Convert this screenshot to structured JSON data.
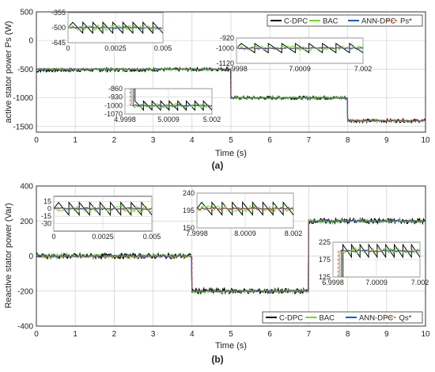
{
  "colors": {
    "c_dpc": "#000000",
    "bac": "#66dd22",
    "ann_dpc": "#2255cc",
    "reference": "#cc5522",
    "grid": "#d0d0d0",
    "axis": "#333333"
  },
  "chart_data": [
    {
      "type": "line",
      "caption": "(a)",
      "xlabel": "Time (s)",
      "ylabel": "active stator power Ps (W)",
      "xlim": [
        0,
        10
      ],
      "ylim": [
        -1600,
        500
      ],
      "xticks": [
        0,
        1,
        2,
        3,
        4,
        5,
        6,
        7,
        8,
        9,
        10
      ],
      "yticks": [
        500,
        0,
        -500,
        -1000,
        -1500
      ],
      "grid": true,
      "legend_position": "top-right",
      "legend": [
        "C-DPC",
        "BAC",
        "ANN-DPC",
        "Ps*"
      ],
      "series": [
        {
          "name": "C-DPC",
          "x": [
            0,
            0.05,
            5,
            5,
            8,
            8,
            10
          ],
          "y": [
            -560,
            -520,
            -500,
            -1000,
            -1000,
            -1400,
            -1400
          ],
          "ripple": 30
        },
        {
          "name": "BAC",
          "x": [
            0,
            5,
            5,
            8,
            8,
            10
          ],
          "y": [
            -500,
            -500,
            -1000,
            -1000,
            -1400,
            -1400
          ],
          "ripple": 20
        },
        {
          "name": "ANN-DPC",
          "x": [
            0,
            5,
            5,
            8,
            8,
            10
          ],
          "y": [
            -500,
            -500,
            -1000,
            -1000,
            -1400,
            -1400
          ],
          "ripple": 8
        },
        {
          "name": "Ps*",
          "x": [
            0,
            5,
            5,
            8,
            8,
            10
          ],
          "y": [
            -500,
            -500,
            -1000,
            -1000,
            -1400,
            -1400
          ],
          "dashed": true
        }
      ],
      "insets": [
        {
          "xlim": [
            0,
            0.005
          ],
          "ylim": [
            -645,
            -355
          ],
          "xticks": [
            "0",
            "0.0025",
            "0.005"
          ],
          "yticks": [
            "-355",
            "-500",
            "-645"
          ],
          "reference": -500,
          "step": null
        },
        {
          "xlim": [
            6.9998,
            7.002
          ],
          "ylim": [
            -1120,
            -920
          ],
          "xticks": [
            "6.9998",
            "7.0009",
            "7.002"
          ],
          "yticks": [
            "-920",
            "-1000",
            "-1120"
          ],
          "reference": -1000,
          "step": null
        },
        {
          "xlim": [
            4.9998,
            5.002
          ],
          "ylim": [
            -1070,
            -860
          ],
          "xticks": [
            "4.9998",
            "5.0009",
            "5.002"
          ],
          "yticks": [
            "-860",
            "-930",
            "-1000",
            "-1070"
          ],
          "reference": -1000,
          "step": {
            "from": -500,
            "to": -1000
          }
        }
      ]
    },
    {
      "type": "line",
      "caption": "(b)",
      "xlabel": "Time (s)",
      "ylabel": "Reactive stator power (Var)",
      "xlim": [
        0,
        10
      ],
      "ylim": [
        -400,
        400
      ],
      "xticks": [
        0,
        1,
        2,
        3,
        4,
        5,
        6,
        7,
        8,
        9,
        10
      ],
      "yticks": [
        400,
        200,
        0,
        -200,
        -400
      ],
      "grid": true,
      "legend_position": "bottom-right",
      "legend": [
        "C-DPC",
        "BAC",
        "ANN-DPC",
        "Qs*"
      ],
      "series": [
        {
          "name": "C-DPC",
          "x": [
            0,
            4,
            4,
            7,
            7,
            10
          ],
          "y": [
            0,
            0,
            -200,
            -200,
            200,
            200
          ],
          "ripple": 15
        },
        {
          "name": "BAC",
          "x": [
            0,
            4,
            4,
            7,
            7,
            10
          ],
          "y": [
            0,
            0,
            -200,
            -200,
            200,
            200
          ],
          "ripple": 10
        },
        {
          "name": "ANN-DPC",
          "x": [
            0,
            4,
            4,
            7,
            7,
            10
          ],
          "y": [
            0,
            0,
            -200,
            -200,
            200,
            200
          ],
          "ripple": 5
        },
        {
          "name": "Qs*",
          "x": [
            0,
            4,
            4,
            7,
            7,
            10
          ],
          "y": [
            0,
            0,
            -200,
            -200,
            200,
            200
          ],
          "dashed": true
        }
      ],
      "insets": [
        {
          "xlim": [
            0,
            0.005
          ],
          "ylim": [
            -45,
            25
          ],
          "xticks": [
            "0",
            "0.0025",
            "0.005"
          ],
          "yticks": [
            "15",
            "0",
            "-15",
            "-30"
          ],
          "reference": 0,
          "step": null
        },
        {
          "xlim": [
            7.9998,
            8.002
          ],
          "ylim": [
            150,
            240
          ],
          "xticks": [
            "7.9998",
            "8.0009",
            "8.002"
          ],
          "yticks": [
            "240",
            "195",
            "150"
          ],
          "reference": 200,
          "step": null
        },
        {
          "xlim": [
            6.9998,
            7.002
          ],
          "ylim": [
            125,
            225
          ],
          "xticks": [
            "6.9998",
            "7.0009",
            "7.002"
          ],
          "yticks": [
            "225",
            "175",
            "125"
          ],
          "reference": 200,
          "step": {
            "from": -200,
            "to": 200
          }
        }
      ]
    }
  ]
}
